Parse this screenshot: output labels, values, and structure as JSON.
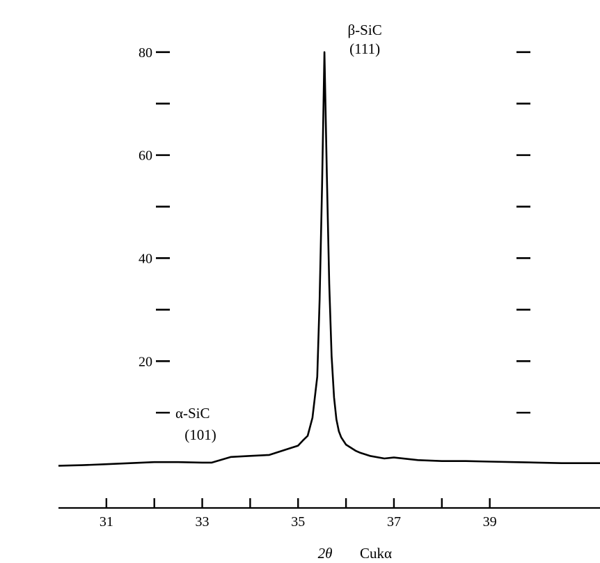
{
  "chart_data": {
    "type": "line",
    "xlabel": "2θ",
    "xlabel_unit": "Cukα",
    "ylabel": "",
    "xlim": [
      30.0,
      41.3
    ],
    "ylim": [
      -8.5,
      82
    ],
    "x_ticks": [
      31,
      32,
      33,
      34,
      35,
      36,
      37,
      38,
      39
    ],
    "x_tick_labels": [
      "31",
      "33",
      "35",
      "37",
      "39"
    ],
    "y_ticks_left": [
      10,
      20,
      30,
      40,
      50,
      60,
      70,
      80
    ],
    "y_tick_labels": [
      "20",
      "40",
      "60",
      "80"
    ],
    "y_ticks_right": [
      10,
      20,
      30,
      40,
      50,
      60,
      70,
      80
    ],
    "grid": false,
    "series": [
      {
        "name": "",
        "x": [
          30.0,
          30.5,
          31.0,
          31.5,
          32.0,
          32.5,
          33.0,
          33.2,
          33.6,
          34.0,
          34.4,
          34.8,
          35.0,
          35.1,
          35.2,
          35.3,
          35.4,
          35.45,
          35.5,
          35.55,
          35.6,
          35.65,
          35.7,
          35.75,
          35.8,
          35.85,
          35.9,
          36.0,
          36.1,
          36.2,
          36.3,
          36.5,
          36.8,
          37.0,
          37.5,
          38.0,
          38.5,
          39.0,
          39.5,
          40.0,
          40.5,
          41.0,
          41.3
        ],
        "y": [
          -0.3,
          -0.2,
          0.0,
          0.2,
          0.4,
          0.4,
          0.3,
          0.3,
          1.4,
          1.6,
          1.8,
          3.0,
          3.6,
          4.6,
          5.5,
          9.0,
          17.0,
          32.0,
          54.0,
          80.0,
          56.0,
          35.0,
          21.0,
          13.0,
          8.7,
          6.4,
          5.2,
          3.8,
          3.2,
          2.6,
          2.2,
          1.6,
          1.1,
          1.3,
          0.8,
          0.6,
          0.6,
          0.5,
          0.4,
          0.3,
          0.2,
          0.2,
          0.2
        ]
      }
    ],
    "annotations": [
      {
        "line1": "β-SiC",
        "line2": "(111)",
        "x": 35.55,
        "y": 80
      },
      {
        "line1": "α-SiC",
        "line2": "(101)",
        "x": 31.9,
        "y": 10
      }
    ]
  }
}
